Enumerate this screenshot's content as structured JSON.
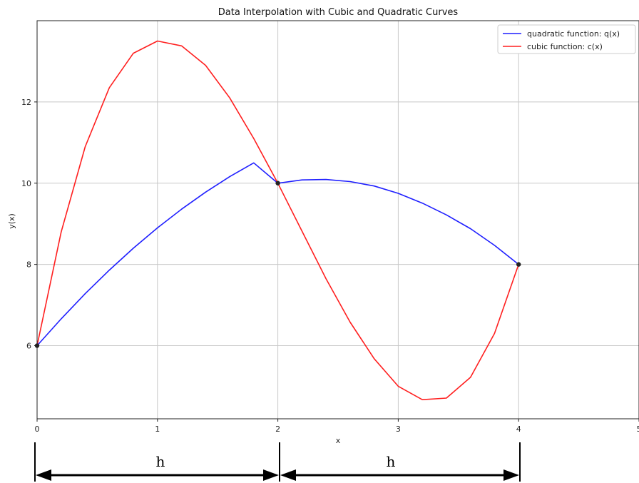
{
  "chart_data": {
    "type": "line",
    "title": "Data Interpolation with Cubic and Quadratic Curves",
    "xlabel": "x",
    "ylabel": "y(x)",
    "xlim": [
      0,
      5
    ],
    "ylim": [
      4.2,
      14
    ],
    "grid": true,
    "legend_position": "top-right",
    "x_ticks": [
      "0",
      "1",
      "2",
      "3",
      "4",
      "5"
    ],
    "x_tick_values": [
      0,
      1,
      2,
      3,
      4,
      5
    ],
    "y_ticks": [
      "6",
      "8",
      "10",
      "12"
    ],
    "y_tick_values": [
      6,
      8,
      10,
      12
    ],
    "series": [
      {
        "name": "quadratic function: q(x)",
        "color": "#1f1fff",
        "x": [
          0,
          0.2,
          0.4,
          0.6,
          0.8,
          1.0,
          1.2,
          1.4,
          1.6,
          1.8,
          2.0,
          2.2,
          2.4,
          2.6,
          2.8,
          3.0,
          3.2,
          3.4,
          3.6,
          3.8,
          4.0
        ],
        "y": [
          6.0,
          6.66,
          7.28,
          7.86,
          8.4,
          8.9,
          9.36,
          9.78,
          10.16,
          10.5,
          10.0,
          10.08,
          10.09,
          10.04,
          9.93,
          9.75,
          9.51,
          9.22,
          8.88,
          8.47,
          8.0
        ]
      },
      {
        "name": "cubic function: c(x)",
        "color": "#ff1f1f",
        "x": [
          0,
          0.2,
          0.4,
          0.6,
          0.8,
          1.0,
          1.2,
          1.4,
          1.6,
          1.8,
          2.0,
          2.2,
          2.4,
          2.6,
          2.8,
          3.0,
          3.2,
          3.4,
          3.6,
          3.8,
          4.0
        ],
        "y": [
          6.0,
          8.8,
          10.9,
          12.35,
          13.2,
          13.5,
          13.38,
          12.9,
          12.1,
          11.1,
          10.0,
          8.82,
          7.65,
          6.58,
          5.68,
          5.0,
          4.67,
          4.71,
          5.22,
          6.3,
          8.0
        ]
      }
    ],
    "points": [
      {
        "x": 0,
        "y": 6
      },
      {
        "x": 2,
        "y": 10
      },
      {
        "x": 4,
        "y": 8
      }
    ],
    "annotations": {
      "h_labels": [
        "h",
        "h"
      ]
    }
  }
}
